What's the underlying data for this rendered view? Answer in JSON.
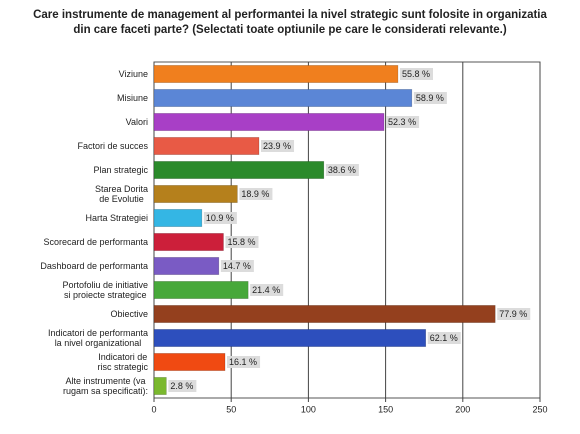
{
  "chart_data": {
    "type": "bar",
    "orientation": "horizontal",
    "title": "Care instrumente de management al performantei la nivel strategic sunt folosite in organizatia\ndin care faceti parte? (Selectati toate optiunile pe care le considerati relevante.)",
    "categories": [
      "Viziune",
      "Misiune",
      "Valori",
      "Factori de succes",
      "Plan strategic",
      "Starea Dorita\nde Evolutie",
      "Harta Strategiei",
      "Scorecard de performanta",
      "Dashboard de performanta",
      "Portofoliu de initiative\nsi proiecte strategice",
      "Obiective",
      "Indicatori de performanta\nla nivel organizational",
      "Indicatori de\nrisc strategic",
      "Alte instrumente (va\nrugam sa specificati):"
    ],
    "values": [
      158,
      167,
      149,
      68,
      110,
      54,
      31,
      45,
      42,
      61,
      221,
      176,
      46,
      8
    ],
    "percentages": [
      55.8,
      58.9,
      52.3,
      23.9,
      38.6,
      18.9,
      10.9,
      15.8,
      14.7,
      21.4,
      77.9,
      62.1,
      16.1,
      2.8
    ],
    "percentage_labels": [
      "55.8 %",
      "58.9 %",
      "52.3 %",
      "23.9 %",
      "38.6 %",
      "18.9 %",
      "10.9 %",
      "15.8 %",
      "14.7 %",
      "21.4 %",
      "77.9 %",
      "62.1 %",
      "16.1 %",
      "2.8 %"
    ],
    "colors": [
      "#f07f1e",
      "#5b86d6",
      "#a83fc6",
      "#e85a45",
      "#2b8a2b",
      "#b5801c",
      "#34b6e4",
      "#cc1f3a",
      "#7a5bc4",
      "#47a83a",
      "#94401e",
      "#2d4fbd",
      "#f04a12",
      "#7ab82e"
    ],
    "xlim": [
      0,
      250
    ],
    "xticks": [
      0,
      50,
      100,
      150,
      200,
      250
    ],
    "grid": true
  }
}
